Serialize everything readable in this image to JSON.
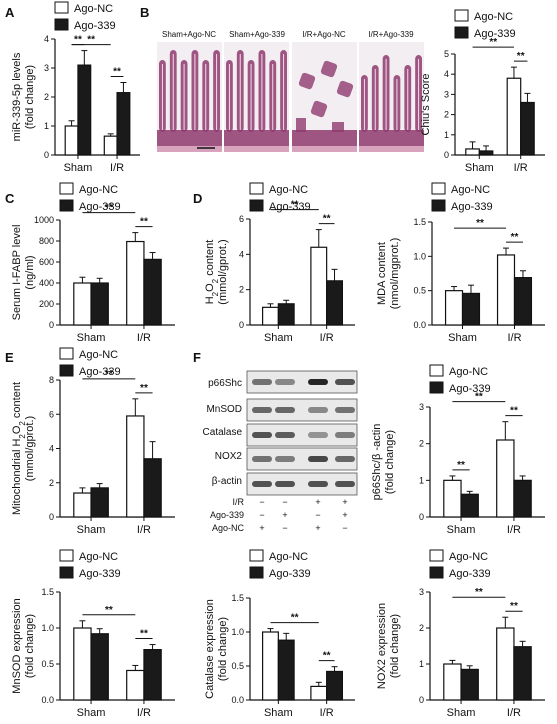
{
  "panel_labels": [
    "A",
    "B",
    "C",
    "D",
    "E",
    "F"
  ],
  "legend": {
    "control": "Ago-NC",
    "treat": "Ago-339"
  },
  "colors": {
    "control": "#ffffff",
    "treat": "#1a1a1a",
    "axis": "#111111"
  },
  "histology": {
    "labels": [
      "Sham+Ago-NC",
      "Sham+Ago-339",
      "I/R+Ago-NC",
      "I/R+Ago-339"
    ],
    "stain": "#8e3a6e",
    "background": "#f3eef2"
  },
  "western_blot": {
    "proteins": [
      "p66Shc",
      "MnSOD",
      "Catalase",
      "NOX2",
      "β-actin"
    ],
    "rows": [
      {
        "label": "I/R",
        "signs": [
          "−",
          "−",
          "+",
          "+"
        ]
      },
      {
        "label": "Ago-339",
        "signs": [
          "−",
          "+",
          "−",
          "+"
        ]
      },
      {
        "label": "Ago-NC",
        "signs": [
          "+",
          "−",
          "+",
          "−"
        ]
      }
    ]
  },
  "chart_data": [
    {
      "id": "A",
      "type": "bar",
      "categories": [
        "Sham",
        "I/R"
      ],
      "series": [
        {
          "name": "Ago-NC",
          "values": [
            1.0,
            0.65
          ],
          "errors": [
            0.18,
            0.08
          ]
        },
        {
          "name": "Ago-339",
          "values": [
            3.1,
            2.15
          ],
          "errors": [
            0.5,
            0.35
          ]
        }
      ],
      "ylabel_lines": [
        "miR-339-5p levels",
        "(fold change)"
      ],
      "ylim": [
        0,
        4
      ],
      "yticks": [
        0,
        1,
        2,
        3,
        4
      ],
      "sig": [
        {
          "type": "within",
          "cat": 0,
          "text": "**"
        },
        {
          "type": "between",
          "text": "**"
        },
        {
          "type": "within",
          "cat": 1,
          "text": "**"
        }
      ]
    },
    {
      "id": "B",
      "type": "bar",
      "categories": [
        "Sham",
        "I/R"
      ],
      "series": [
        {
          "name": "Ago-NC",
          "values": [
            0.3,
            3.8
          ],
          "errors": [
            0.35,
            0.55
          ]
        },
        {
          "name": "Ago-339",
          "values": [
            0.2,
            2.6
          ],
          "errors": [
            0.25,
            0.45
          ]
        }
      ],
      "ylabel_lines": [
        "Chiu's Score"
      ],
      "ylim": [
        0,
        5
      ],
      "yticks": [
        0,
        1,
        2,
        3,
        4,
        5
      ],
      "sig": [
        {
          "type": "between",
          "text": "**"
        },
        {
          "type": "within",
          "cat": 1,
          "text": "**"
        }
      ]
    },
    {
      "id": "C",
      "type": "bar",
      "categories": [
        "Sham",
        "I/R"
      ],
      "series": [
        {
          "name": "Ago-NC",
          "values": [
            400,
            795
          ],
          "errors": [
            55,
            85
          ]
        },
        {
          "name": "Ago-339",
          "values": [
            400,
            625
          ],
          "errors": [
            45,
            65
          ]
        }
      ],
      "ylabel_lines": [
        "Serum I-FABP level",
        "(ng/ml)"
      ],
      "ylim": [
        0,
        1000
      ],
      "yticks": [
        0,
        200,
        400,
        600,
        800,
        1000
      ],
      "sig": [
        {
          "type": "between",
          "text": "**"
        },
        {
          "type": "within",
          "cat": 1,
          "text": "**"
        }
      ]
    },
    {
      "id": "D1",
      "type": "bar",
      "categories": [
        "Sham",
        "I/R"
      ],
      "series": [
        {
          "name": "Ago-NC",
          "values": [
            1.0,
            4.4
          ],
          "errors": [
            0.2,
            1.0
          ]
        },
        {
          "name": "Ago-339",
          "values": [
            1.2,
            2.5
          ],
          "errors": [
            0.2,
            0.65
          ]
        }
      ],
      "ylabel_lines": [
        "H2O2 content",
        "(mmol/gprot.)"
      ],
      "ylim": [
        0,
        6
      ],
      "yticks": [
        0,
        2,
        4,
        6
      ],
      "sig": [
        {
          "type": "between",
          "text": "**"
        },
        {
          "type": "within",
          "cat": 1,
          "text": "**"
        }
      ]
    },
    {
      "id": "D2",
      "type": "bar",
      "categories": [
        "Sham",
        "I/R"
      ],
      "series": [
        {
          "name": "Ago-NC",
          "values": [
            0.5,
            1.02
          ],
          "errors": [
            0.06,
            0.1
          ]
        },
        {
          "name": "Ago-339",
          "values": [
            0.46,
            0.69
          ],
          "errors": [
            0.12,
            0.1
          ]
        }
      ],
      "ylabel_lines": [
        "MDA content",
        "(nmol/mgprot.)"
      ],
      "ylim": [
        0,
        1.5
      ],
      "yticks": [
        0.0,
        0.5,
        1.0,
        1.5
      ],
      "sig": [
        {
          "type": "between",
          "text": "**"
        },
        {
          "type": "within",
          "cat": 1,
          "text": "**"
        }
      ]
    },
    {
      "id": "E",
      "type": "bar",
      "categories": [
        "Sham",
        "I/R"
      ],
      "series": [
        {
          "name": "Ago-NC",
          "values": [
            1.4,
            5.9
          ],
          "errors": [
            0.3,
            1.0
          ]
        },
        {
          "name": "Ago-339",
          "values": [
            1.7,
            3.4
          ],
          "errors": [
            0.25,
            1.0
          ]
        }
      ],
      "ylabel_lines": [
        "Mitochondrial H2O2 content",
        "(mmol/gprot.)"
      ],
      "ylim": [
        0,
        8
      ],
      "yticks": [
        0,
        2,
        4,
        6,
        8
      ],
      "sig": [
        {
          "type": "between",
          "text": "**"
        },
        {
          "type": "within",
          "cat": 1,
          "text": "**"
        }
      ]
    },
    {
      "id": "F1",
      "type": "bar",
      "categories": [
        "Sham",
        "I/R"
      ],
      "series": [
        {
          "name": "Ago-NC",
          "values": [
            1.0,
            2.1
          ],
          "errors": [
            0.12,
            0.5
          ]
        },
        {
          "name": "Ago-339",
          "values": [
            0.62,
            1.0
          ],
          "errors": [
            0.08,
            0.12
          ]
        }
      ],
      "ylabel_lines": [
        "p66Shc/β -actin",
        "(fold change)"
      ],
      "ylim": [
        0,
        3
      ],
      "yticks": [
        0,
        1,
        2,
        3
      ],
      "sig": [
        {
          "type": "within",
          "cat": 0,
          "text": "**"
        },
        {
          "type": "between",
          "text": "**"
        },
        {
          "type": "within",
          "cat": 1,
          "text": "**"
        }
      ]
    },
    {
      "id": "G1",
      "type": "bar",
      "categories": [
        "Sham",
        "I/R"
      ],
      "series": [
        {
          "name": "Ago-NC",
          "values": [
            1.0,
            0.41
          ],
          "errors": [
            0.1,
            0.07
          ]
        },
        {
          "name": "Ago-339",
          "values": [
            0.92,
            0.7
          ],
          "errors": [
            0.07,
            0.07
          ]
        }
      ],
      "ylabel_lines": [
        "MnSOD expression",
        "(fold change)"
      ],
      "ylim": [
        0,
        1.5
      ],
      "yticks": [
        0.0,
        0.5,
        1.0,
        1.5
      ],
      "sig": [
        {
          "type": "between",
          "text": "**"
        },
        {
          "type": "within",
          "cat": 1,
          "text": "**"
        }
      ]
    },
    {
      "id": "G2",
      "type": "bar",
      "categories": [
        "Sham",
        "I/R"
      ],
      "series": [
        {
          "name": "Ago-NC",
          "values": [
            1.0,
            0.2
          ],
          "errors": [
            0.05,
            0.06
          ]
        },
        {
          "name": "Ago-339",
          "values": [
            0.88,
            0.42
          ],
          "errors": [
            0.1,
            0.07
          ]
        }
      ],
      "ylabel_lines": [
        "Catalase expression",
        "(fold change)"
      ],
      "ylim": [
        0,
        1.5
      ],
      "yticks": [
        0.0,
        0.5,
        1.0,
        1.5
      ],
      "sig": [
        {
          "type": "between",
          "text": "**"
        },
        {
          "type": "within",
          "cat": 1,
          "text": "**"
        }
      ]
    },
    {
      "id": "G3",
      "type": "bar",
      "categories": [
        "Sham",
        "I/R"
      ],
      "series": [
        {
          "name": "Ago-NC",
          "values": [
            1.0,
            2.0
          ],
          "errors": [
            0.1,
            0.3
          ]
        },
        {
          "name": "Ago-339",
          "values": [
            0.85,
            1.48
          ],
          "errors": [
            0.1,
            0.15
          ]
        }
      ],
      "ylabel_lines": [
        "NOX2 expression",
        "(fold change)"
      ],
      "ylim": [
        0,
        3
      ],
      "yticks": [
        0,
        1,
        2,
        3
      ],
      "sig": [
        {
          "type": "between",
          "text": "**"
        },
        {
          "type": "within",
          "cat": 1,
          "text": "**"
        }
      ]
    }
  ]
}
